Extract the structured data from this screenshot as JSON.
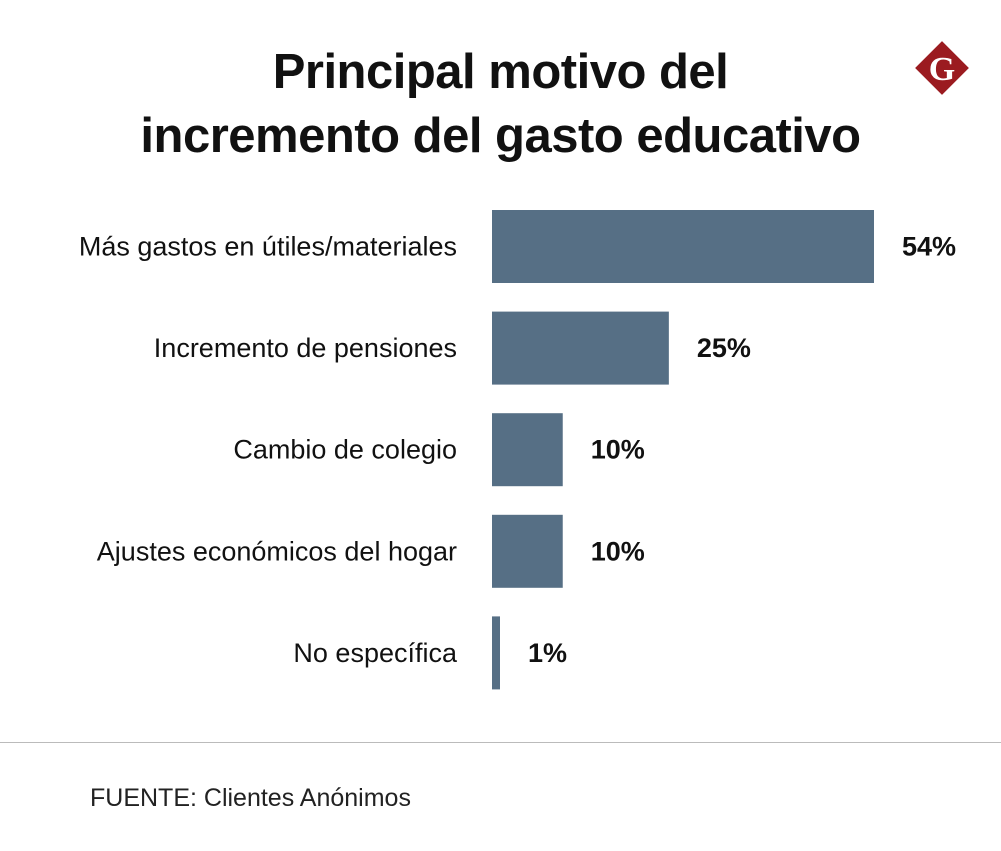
{
  "chart_data": {
    "type": "bar",
    "orientation": "horizontal",
    "title": "Principal motivo del incremento del gasto educativo",
    "title_lines": [
      "Principal motivo del",
      "incremento del gasto educativo"
    ],
    "categories": [
      "Más gastos en útiles/materiales",
      "Incremento de pensiones",
      "Cambio de colegio",
      "Ajustes económicos del hogar",
      "No específica"
    ],
    "values": [
      54,
      25,
      10,
      10,
      1
    ],
    "value_labels": [
      "54%",
      "25%",
      "10%",
      "10%",
      "1%"
    ],
    "unit": "%",
    "xlabel": "",
    "ylabel": "",
    "xlim": [
      0,
      54
    ],
    "grid": false,
    "bar_color": "#566f85"
  },
  "logo": {
    "letter": "G",
    "color": "#9b1b20"
  },
  "source": "FUENTE: Clientes Anónimos"
}
